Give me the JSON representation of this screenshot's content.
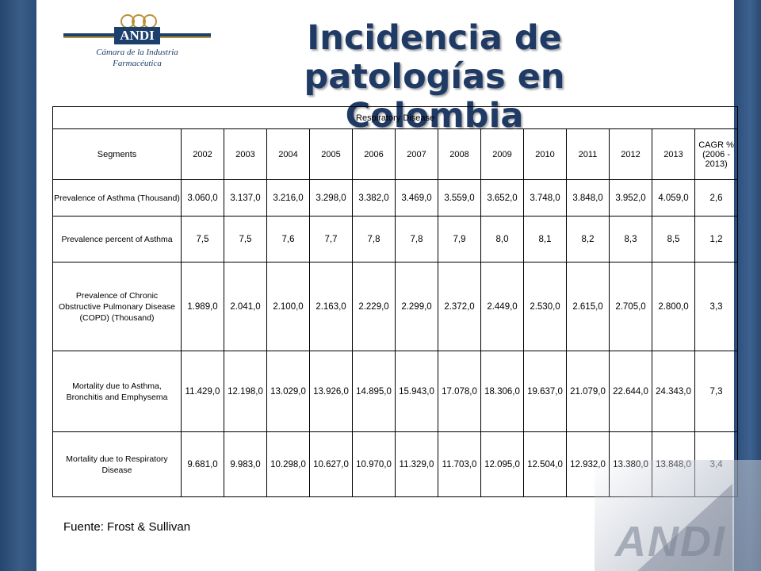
{
  "logo": {
    "brand": "ANDI",
    "subtitle_line1": "Cámara de la Industria",
    "subtitle_line2": "Farmacéutica"
  },
  "title_line1": "Incidencia de patologías en",
  "title_line2": "Colombia",
  "table": {
    "caption": "Respiratory Disease",
    "segments_header": "Segments",
    "years": [
      "2002",
      "2003",
      "2004",
      "2005",
      "2006",
      "2007",
      "2008",
      "2009",
      "2010",
      "2011",
      "2012",
      "2013"
    ],
    "cagr_header": "CAGR % (2006 - 2013)",
    "rows": [
      {
        "label": "Prevalence of Asthma (Thousand)",
        "values": [
          "3.060,0",
          "3.137,0",
          "3.216,0",
          "3.298,0",
          "3.382,0",
          "3.469,0",
          "3.559,0",
          "3.652,0",
          "3.748,0",
          "3.848,0",
          "3.952,0",
          "4.059,0"
        ],
        "cagr": "2,6"
      },
      {
        "label": "Prevalence percent of Asthma",
        "values": [
          "7,5",
          "7,5",
          "7,6",
          "7,7",
          "7,8",
          "7,8",
          "7,9",
          "8,0",
          "8,1",
          "8,2",
          "8,3",
          "8,5"
        ],
        "cagr": "1,2"
      },
      {
        "label": "Prevalence of Chronic Obstructive Pulmonary Disease (COPD) (Thousand)",
        "values": [
          "1.989,0",
          "2.041,0",
          "2.100,0",
          "2.163,0",
          "2.229,0",
          "2.299,0",
          "2.372,0",
          "2.449,0",
          "2.530,0",
          "2.615,0",
          "2.705,0",
          "2.800,0"
        ],
        "cagr": "3,3"
      },
      {
        "label": "Mortality due to Asthma, Bronchitis and Emphysema",
        "values": [
          "11.429,0",
          "12.198,0",
          "13.029,0",
          "13.926,0",
          "14.895,0",
          "15.943,0",
          "17.078,0",
          "18.306,0",
          "19.637,0",
          "21.079,0",
          "22.644,0",
          "24.343,0"
        ],
        "cagr": "7,3"
      },
      {
        "label": "Mortality due to Respiratory Disease",
        "values": [
          "9.681,0",
          "9.983,0",
          "10.298,0",
          "10.627,0",
          "10.970,0",
          "11.329,0",
          "11.703,0",
          "12.095,0",
          "12.504,0",
          "12.932,0",
          "13.380,0",
          "13.848,0"
        ],
        "cagr": "3,4"
      }
    ]
  },
  "source": "Fuente: Frost & Sullivan",
  "colors": {
    "title": "#1f3a64",
    "band": "#2f527d",
    "logo_gold": "#b8923b",
    "logo_navy": "#1c3f6b"
  }
}
